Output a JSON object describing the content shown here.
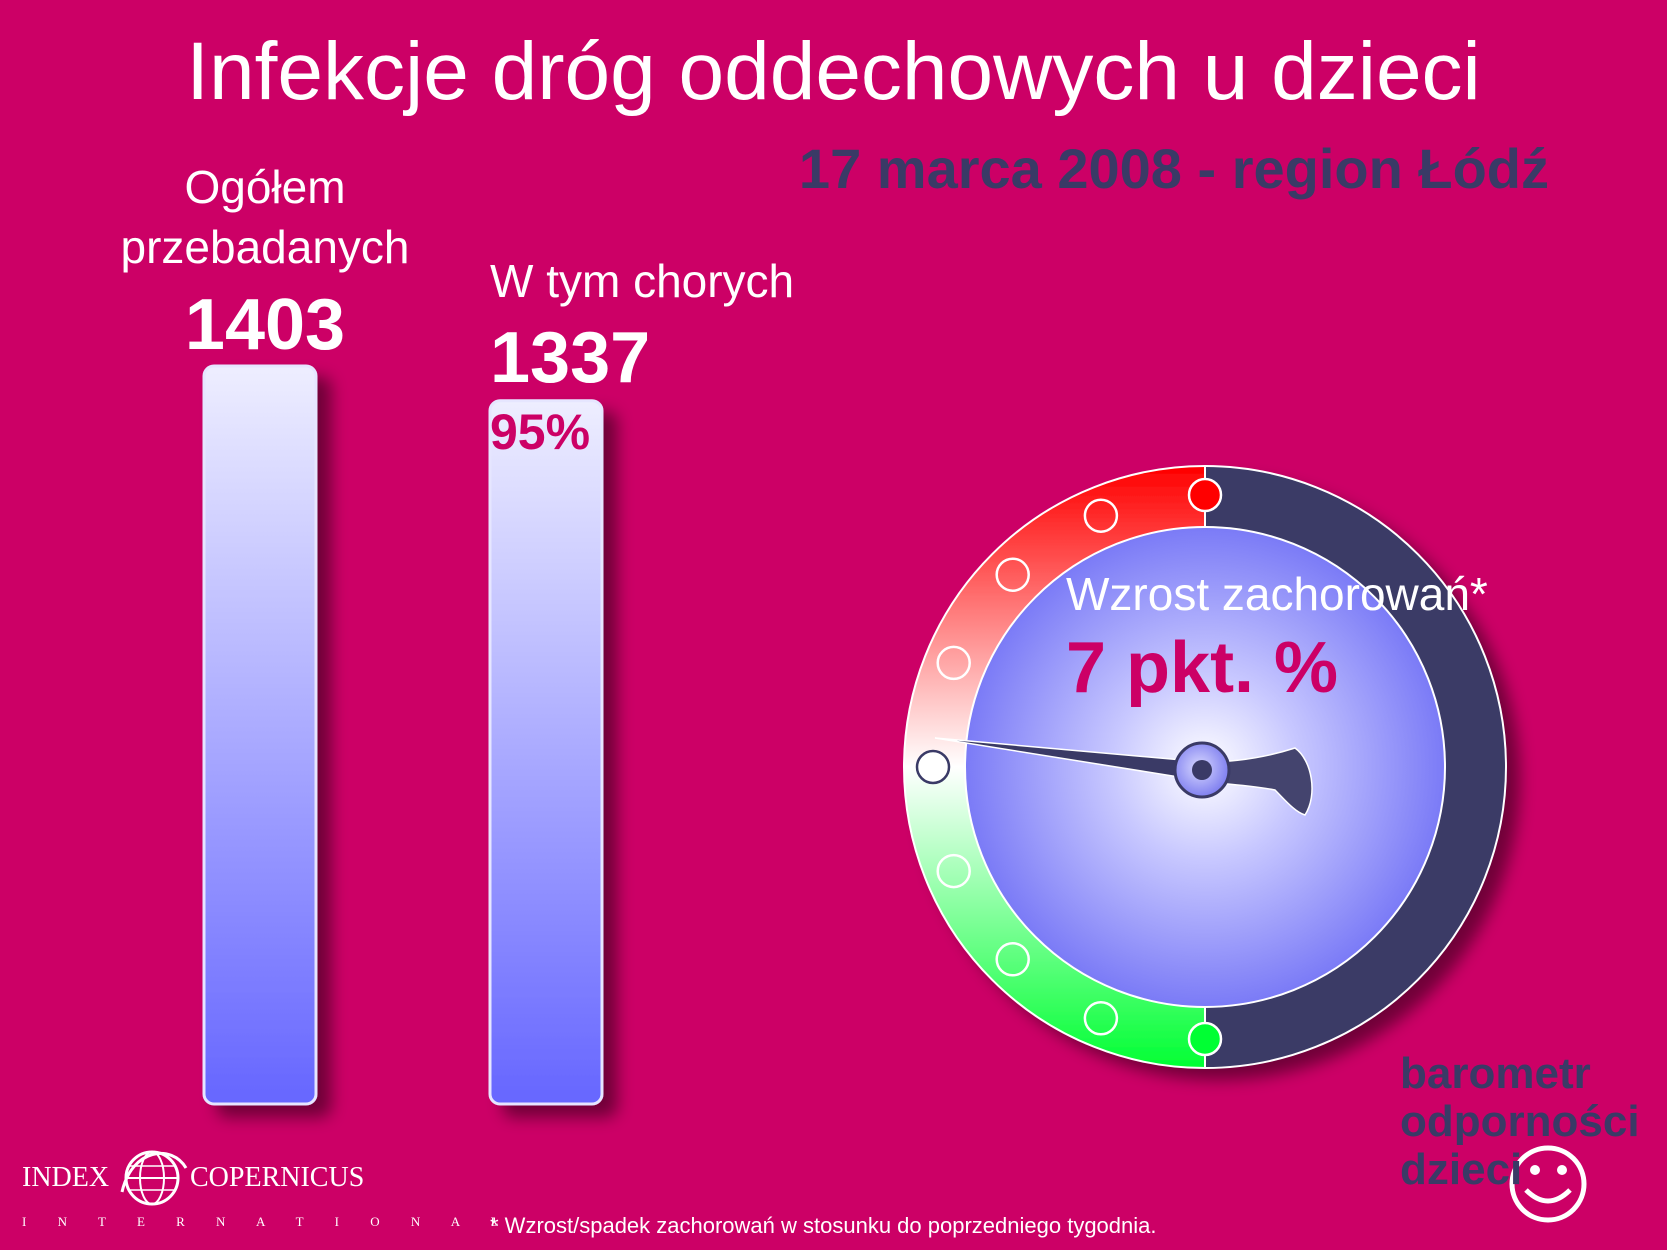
{
  "chart_data": {
    "type": "bar",
    "title": "Infekcje dróg oddechowych u dzieci",
    "subtitle": "17 marca 2008 - region Łódź",
    "categories": [
      "Ogółem przebadanych",
      "W tym chorych"
    ],
    "values": [
      1403,
      1337
    ],
    "value_labels": [
      "1403",
      "1337"
    ],
    "percent_label": "95%",
    "ylim": [
      0,
      1403
    ]
  },
  "bars": {
    "total_label_line1": "Ogółem",
    "total_label_line2": "przebadanych",
    "total_value": "1403",
    "sick_label": "W tym chorych",
    "sick_value": "1337",
    "sick_percent": "95%"
  },
  "gauge": {
    "label": "Wzrost zachorowań*",
    "value_text": "7 pkt. %",
    "value_pp": 7,
    "colors": {
      "top": "#ff0000",
      "middle": "#ffffff",
      "bottom": "#00ff33",
      "right": "#3a3a66",
      "face": "#7777ff"
    }
  },
  "logo_barometr": {
    "line1": "barometr",
    "line2": "odporności",
    "line3": "dzieci"
  },
  "logo_copernicus": {
    "left": "INDEX",
    "right": "COPERNICUS",
    "sub": "I N T E R N A T I O N A L"
  },
  "footnote": "* Wzrost/spadek zachorowań w stosunku do poprzedniego tygodnia."
}
